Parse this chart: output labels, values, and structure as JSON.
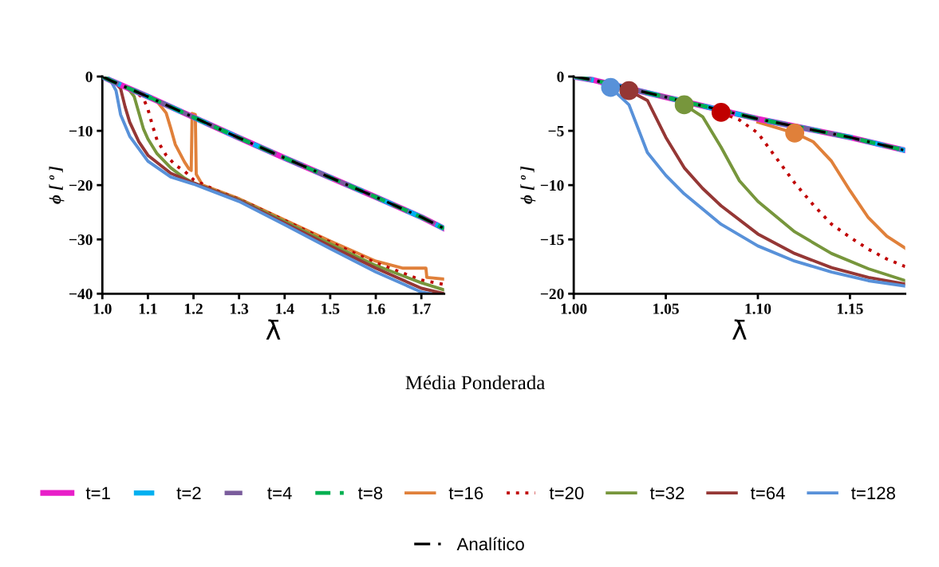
{
  "chart_data": [
    {
      "type": "line",
      "xlabel": "λ̄",
      "ylabel": "ϕ [ º ]",
      "xlim": [
        1.0,
        1.75
      ],
      "ylim": [
        -40,
        0
      ],
      "xticks": [
        {
          "value": 1.0,
          "label": "1.0"
        },
        {
          "value": 1.1,
          "label": "1.1"
        },
        {
          "value": 1.2,
          "label": "1.2"
        },
        {
          "value": 1.3,
          "label": "1.3"
        },
        {
          "value": 1.4,
          "label": "1.4"
        },
        {
          "value": 1.5,
          "label": "1.5"
        },
        {
          "value": 1.6,
          "label": "1.6"
        },
        {
          "value": 1.7,
          "label": "1.7"
        }
      ],
      "yticks": [
        0,
        {
          "value": -10,
          "label": "−10"
        },
        {
          "value": -20,
          "label": "−20"
        },
        {
          "value": -30,
          "label": "−30"
        },
        {
          "value": -40,
          "label": "−40"
        }
      ],
      "grid": false,
      "legend": "bottom",
      "annotations": [
        "Média Ponderada"
      ],
      "series": [
        {
          "name": "t=1",
          "color": "#e81fc8",
          "line_style": "solid",
          "x": [
            1.0,
            1.02,
            1.05,
            1.1,
            1.2,
            1.3,
            1.4,
            1.5,
            1.6,
            1.7,
            1.75
          ],
          "values": [
            0,
            -0.8,
            -1.9,
            -3.7,
            -7.5,
            -11.3,
            -15,
            -18.6,
            -22.2,
            -25.9,
            -28
          ]
        },
        {
          "name": "t=2",
          "color": "#00b0f0",
          "line_style": "dashed",
          "x": [
            1.0,
            1.02,
            1.05,
            1.1,
            1.2,
            1.3,
            1.4,
            1.5,
            1.6,
            1.7,
            1.75
          ],
          "values": [
            0,
            -0.8,
            -1.9,
            -3.7,
            -7.5,
            -11.3,
            -15,
            -18.6,
            -22.2,
            -25.9,
            -28
          ]
        },
        {
          "name": "t=4",
          "color": "#7a5c9c",
          "line_style": "dashed",
          "x": [
            1.0,
            1.02,
            1.05,
            1.1,
            1.2,
            1.3,
            1.4,
            1.5,
            1.6,
            1.7,
            1.75
          ],
          "values": [
            0,
            -0.8,
            -1.9,
            -3.7,
            -7.5,
            -11.3,
            -15,
            -18.6,
            -22.2,
            -25.9,
            -28
          ]
        },
        {
          "name": "t=8",
          "color": "#00b050",
          "line_style": "dashed",
          "x": [
            1.0,
            1.02,
            1.05,
            1.1,
            1.2,
            1.3,
            1.4,
            1.5,
            1.6,
            1.7,
            1.75
          ],
          "values": [
            0,
            -0.8,
            -1.9,
            -3.7,
            -7.5,
            -11.3,
            -15,
            -18.6,
            -22.2,
            -25.9,
            -28
          ]
        },
        {
          "name": "t=16",
          "color": "#e0803a",
          "line_style": "solid",
          "x": [
            1.1,
            1.12,
            1.14,
            1.15,
            1.16,
            1.18,
            1.19,
            1.195,
            1.197,
            1.204,
            1.206,
            1.22,
            1.3,
            1.4,
            1.5,
            1.6,
            1.66,
            1.71,
            1.712,
            1.75
          ],
          "values": [
            -3.7,
            -4.6,
            -6.7,
            -9.5,
            -12.5,
            -15.7,
            -17,
            -17.3,
            -6.8,
            -7,
            -18,
            -20,
            -22.5,
            -26.4,
            -30.3,
            -34,
            -35.3,
            -35.3,
            -37,
            -37.3
          ]
        },
        {
          "name": "t=20",
          "color": "#c00000",
          "line_style": "dotted",
          "x": [
            1.08,
            1.09,
            1.1,
            1.11,
            1.12,
            1.14,
            1.16,
            1.18,
            1.2,
            1.25,
            1.3,
            1.4,
            1.5,
            1.6,
            1.7,
            1.75
          ],
          "values": [
            -3.3,
            -4,
            -6,
            -9,
            -11.7,
            -14.5,
            -16.3,
            -17.4,
            -19,
            -21,
            -22.6,
            -26.5,
            -30.5,
            -34.3,
            -37.5,
            -38.3
          ]
        },
        {
          "name": "t=32",
          "color": "#77963c",
          "line_style": "solid",
          "x": [
            1.05,
            1.06,
            1.07,
            1.09,
            1.1,
            1.12,
            1.15,
            1.18,
            1.2,
            1.3,
            1.4,
            1.5,
            1.6,
            1.7,
            1.75
          ],
          "values": [
            -1.9,
            -2.6,
            -3.7,
            -9.6,
            -11.5,
            -14.2,
            -16.8,
            -18.7,
            -19.6,
            -22.7,
            -26.7,
            -30.8,
            -34.8,
            -38,
            -39.3
          ]
        },
        {
          "name": "t=64",
          "color": "#953735",
          "line_style": "solid",
          "x": [
            1.0,
            1.02,
            1.03,
            1.04,
            1.05,
            1.06,
            1.08,
            1.1,
            1.15,
            1.2,
            1.3,
            1.4,
            1.5,
            1.6,
            1.7,
            1.75
          ],
          "values": [
            0,
            -0.8,
            -1.3,
            -2.2,
            -5.6,
            -8.4,
            -12,
            -14.5,
            -17.8,
            -19.6,
            -22.8,
            -27,
            -31.2,
            -35.3,
            -39,
            -40
          ]
        },
        {
          "name": "t=128",
          "color": "#5891d9",
          "line_style": "solid",
          "x": [
            1.0,
            1.02,
            1.03,
            1.04,
            1.06,
            1.1,
            1.15,
            1.2,
            1.3,
            1.4,
            1.5,
            1.6,
            1.7,
            1.72
          ],
          "values": [
            0,
            -1,
            -2.6,
            -7,
            -11,
            -15.6,
            -18.5,
            -19.8,
            -23,
            -27.3,
            -31.7,
            -36,
            -39.7,
            -40
          ]
        },
        {
          "name": "Analítico",
          "color": "#000000",
          "line_style": "dashdot",
          "x": [
            1.0,
            1.02,
            1.05,
            1.1,
            1.2,
            1.3,
            1.4,
            1.5,
            1.6,
            1.7,
            1.75
          ],
          "values": [
            0,
            -0.8,
            -1.9,
            -3.7,
            -7.5,
            -11.3,
            -15,
            -18.6,
            -22.2,
            -25.9,
            -28
          ]
        }
      ]
    },
    {
      "type": "line",
      "xlabel": "λ̄",
      "ylabel": "ϕ [ º ]",
      "xlim": [
        1.0,
        1.18
      ],
      "ylim": [
        -20,
        0
      ],
      "xticks": [
        {
          "value": 1.0,
          "label": "1.00"
        },
        {
          "value": 1.05,
          "label": "1.05"
        },
        {
          "value": 1.1,
          "label": "1.10"
        },
        {
          "value": 1.15,
          "label": "1.15"
        }
      ],
      "yticks": [
        0,
        {
          "value": -5,
          "label": "−5"
        },
        {
          "value": -10,
          "label": "−10"
        },
        {
          "value": -15,
          "label": "−15"
        },
        {
          "value": -20,
          "label": "−20"
        }
      ],
      "grid": false,
      "series": [
        {
          "name": "t=1",
          "color": "#e81fc8",
          "line_style": "solid",
          "x": [
            1.0,
            1.01,
            1.04,
            1.1,
            1.15,
            1.18
          ],
          "values": [
            0,
            -0.3,
            -1.5,
            -3.9,
            -5.6,
            -6.8
          ]
        },
        {
          "name": "t=2",
          "color": "#00b0f0",
          "line_style": "dashed",
          "x": [
            1.0,
            1.01,
            1.04,
            1.1,
            1.15,
            1.18
          ],
          "values": [
            0,
            -0.3,
            -1.5,
            -3.9,
            -5.6,
            -6.8
          ]
        },
        {
          "name": "t=4",
          "color": "#7a5c9c",
          "line_style": "dashed",
          "x": [
            1.0,
            1.01,
            1.04,
            1.1,
            1.15,
            1.18
          ],
          "values": [
            0,
            -0.3,
            -1.5,
            -3.9,
            -5.6,
            -6.8
          ]
        },
        {
          "name": "t=8",
          "color": "#00b050",
          "line_style": "dashed",
          "x": [
            1.0,
            1.01,
            1.04,
            1.1,
            1.15,
            1.18
          ],
          "values": [
            0,
            -0.3,
            -1.5,
            -3.9,
            -5.6,
            -6.8
          ]
        },
        {
          "name": "t=16",
          "color": "#e0803a",
          "line_style": "solid",
          "x": [
            1.1,
            1.12,
            1.13,
            1.14,
            1.15,
            1.16,
            1.17,
            1.18
          ],
          "values": [
            -4.2,
            -5.2,
            -6,
            -7.8,
            -10.5,
            -13,
            -14.7,
            -15.8
          ]
        },
        {
          "name": "t=20",
          "color": "#c00000",
          "line_style": "dotted",
          "x": [
            1.08,
            1.09,
            1.1,
            1.11,
            1.12,
            1.13,
            1.14,
            1.15,
            1.16,
            1.17,
            1.18
          ],
          "values": [
            -3.3,
            -4,
            -5.2,
            -7.5,
            -9.8,
            -11.8,
            -13.6,
            -14.8,
            -15.9,
            -16.8,
            -17.5
          ]
        },
        {
          "name": "t=32",
          "color": "#77963c",
          "line_style": "solid",
          "x": [
            1.06,
            1.07,
            1.08,
            1.09,
            1.1,
            1.12,
            1.14,
            1.16,
            1.18
          ],
          "values": [
            -2.6,
            -3.7,
            -6.5,
            -9.6,
            -11.5,
            -14.3,
            -16.3,
            -17.7,
            -18.8
          ]
        },
        {
          "name": "t=64",
          "color": "#953735",
          "line_style": "solid",
          "x": [
            1.03,
            1.04,
            1.05,
            1.06,
            1.07,
            1.08,
            1.1,
            1.12,
            1.14,
            1.16,
            1.18
          ],
          "values": [
            -1.3,
            -2.2,
            -5.6,
            -8.4,
            -10.3,
            -11.9,
            -14.5,
            -16.3,
            -17.6,
            -18.5,
            -19.1
          ]
        },
        {
          "name": "t=128",
          "color": "#5891d9",
          "line_style": "solid",
          "x": [
            1.0,
            1.01,
            1.02,
            1.03,
            1.04,
            1.05,
            1.06,
            1.08,
            1.1,
            1.12,
            1.14,
            1.16,
            1.18
          ],
          "values": [
            0,
            -0.3,
            -1,
            -2.6,
            -7,
            -9.1,
            -10.8,
            -13.6,
            -15.6,
            -17,
            -18,
            -18.8,
            -19.3
          ]
        },
        {
          "name": "Analítico",
          "color": "#000000",
          "line_style": "dashdot",
          "x": [
            1.0,
            1.01,
            1.04,
            1.1,
            1.15,
            1.18
          ],
          "values": [
            0,
            -0.3,
            -1.5,
            -3.9,
            -5.6,
            -6.8
          ]
        },
        {
          "type": "scatter",
          "marker": "circle",
          "x": [
            1.02,
            1.03,
            1.06,
            1.08,
            1.12
          ],
          "values": [
            -1,
            -1.3,
            -2.6,
            -3.3,
            -5.2
          ],
          "colors": [
            "#5891d9",
            "#953735",
            "#77963c",
            "#c00000",
            "#e0803a"
          ]
        }
      ]
    }
  ]
}
